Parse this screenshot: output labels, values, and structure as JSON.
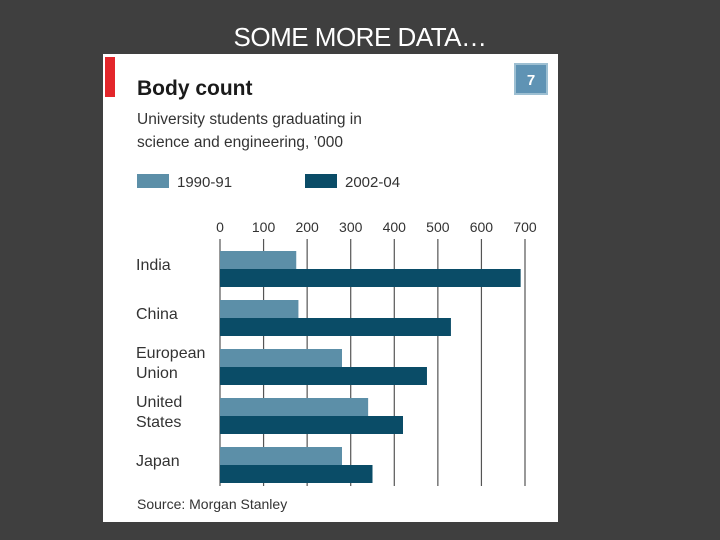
{
  "slide": {
    "title": "SOME MORE DATA…"
  },
  "chart_badge": "7",
  "colors": {
    "accent": "#e3262b",
    "series_1990": "#5c8fa8",
    "series_2002": "#0a4c67",
    "grid": "#555555",
    "badge": "#5f93b4"
  },
  "chart_data": {
    "type": "bar",
    "orientation": "horizontal",
    "title": "Body count",
    "subtitle_lines": [
      "University students graduating in",
      "science and engineering, ’000"
    ],
    "categories": [
      [
        "India"
      ],
      [
        "China"
      ],
      [
        "European",
        "Union"
      ],
      [
        "United",
        "States"
      ],
      [
        "Japan"
      ]
    ],
    "series": [
      {
        "name": "1990-91",
        "values": [
          175,
          180,
          280,
          340,
          280
        ]
      },
      {
        "name": "2002-04",
        "values": [
          690,
          530,
          475,
          420,
          350
        ]
      }
    ],
    "x_ticks": [
      0,
      100,
      200,
      300,
      400,
      500,
      600,
      700
    ],
    "xlim": [
      0,
      700
    ],
    "grid": true,
    "legend_position": "top",
    "source": "Source: Morgan Stanley"
  }
}
